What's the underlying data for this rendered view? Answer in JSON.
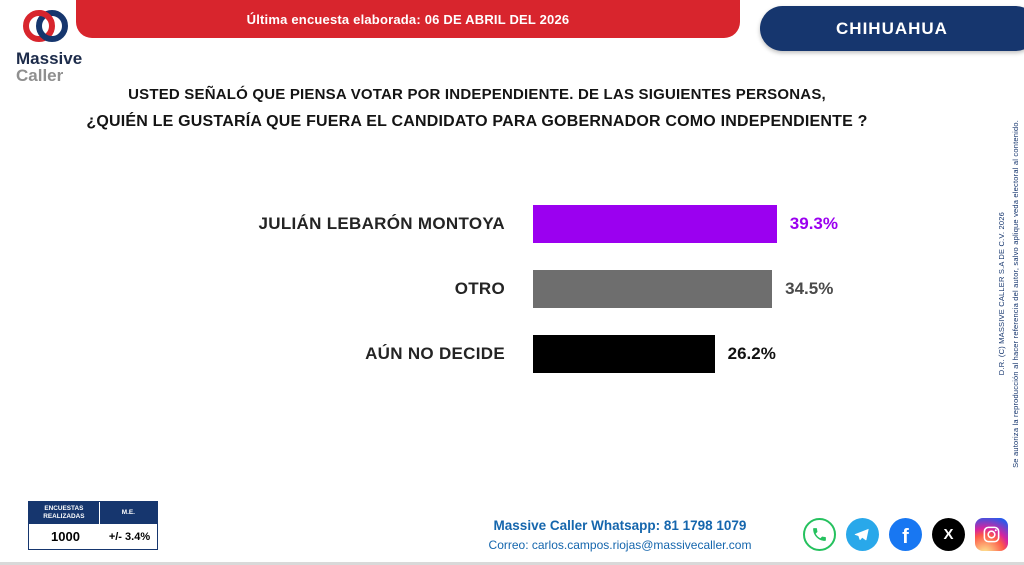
{
  "header": {
    "banner_text": "Última encuesta elaborada: 06 DE ABRIL DEL 2026",
    "state_label": "CHIHUAHUA"
  },
  "logo": {
    "line1": "Massive",
    "line2": "Caller"
  },
  "title": {
    "line1": "USTED SEÑALÓ QUE PIENSA VOTAR POR INDEPENDIENTE. DE LAS SIGUIENTES PERSONAS,",
    "line2": "¿QUIÉN LE GUSTARÍA QUE FUERA EL CANDIDATO PARA GOBERNADOR COMO INDEPENDIENTE ?"
  },
  "chart_data": {
    "type": "bar",
    "orientation": "horizontal",
    "categories": [
      "JULIÁN LEBARÓN MONTOYA",
      "OTRO",
      "AÚN NO DECIDE"
    ],
    "values": [
      39.3,
      34.5,
      26.2
    ],
    "labels": [
      "39.3%",
      "34.5%",
      "26.2%"
    ],
    "bar_colors": [
      "#9b00f0",
      "#6e6e6e",
      "#000000"
    ],
    "value_colors": [
      "#9b00f0",
      "#4a4a4a",
      "#111111"
    ],
    "xmax": 44,
    "title": "",
    "xlabel": "",
    "ylabel": "",
    "grid": false,
    "legend": false
  },
  "stats": {
    "col1_header": "ENCUESTAS REALIZADAS",
    "col2_header": "M.E.",
    "col1_value": "1000",
    "col2_value": "+/- 3.4%"
  },
  "footer": {
    "whatsapp_line": "Massive Caller Whatsapp: 81 1798 1079",
    "email_line": "Correo: carlos.campos.riojas@massivecaller.com"
  },
  "side_note": {
    "line1": "D.R. (C) MASSIVE CALLER S.A DE C.V. 2026",
    "line2": "Se autoriza la reproducción al hacer referencia del autor, salvo aplique veda electoral al contenido."
  },
  "social": {
    "items": [
      "whatsapp",
      "telegram",
      "facebook",
      "x",
      "instagram"
    ]
  },
  "colors": {
    "banner_red": "#d8252d",
    "banner_navy": "#16366e",
    "accent_purple": "#9b00f0",
    "link_blue": "#1566ad",
    "whatsapp_green": "#25c15e",
    "telegram_blue": "#29a8ea",
    "facebook_blue": "#1877f2"
  }
}
